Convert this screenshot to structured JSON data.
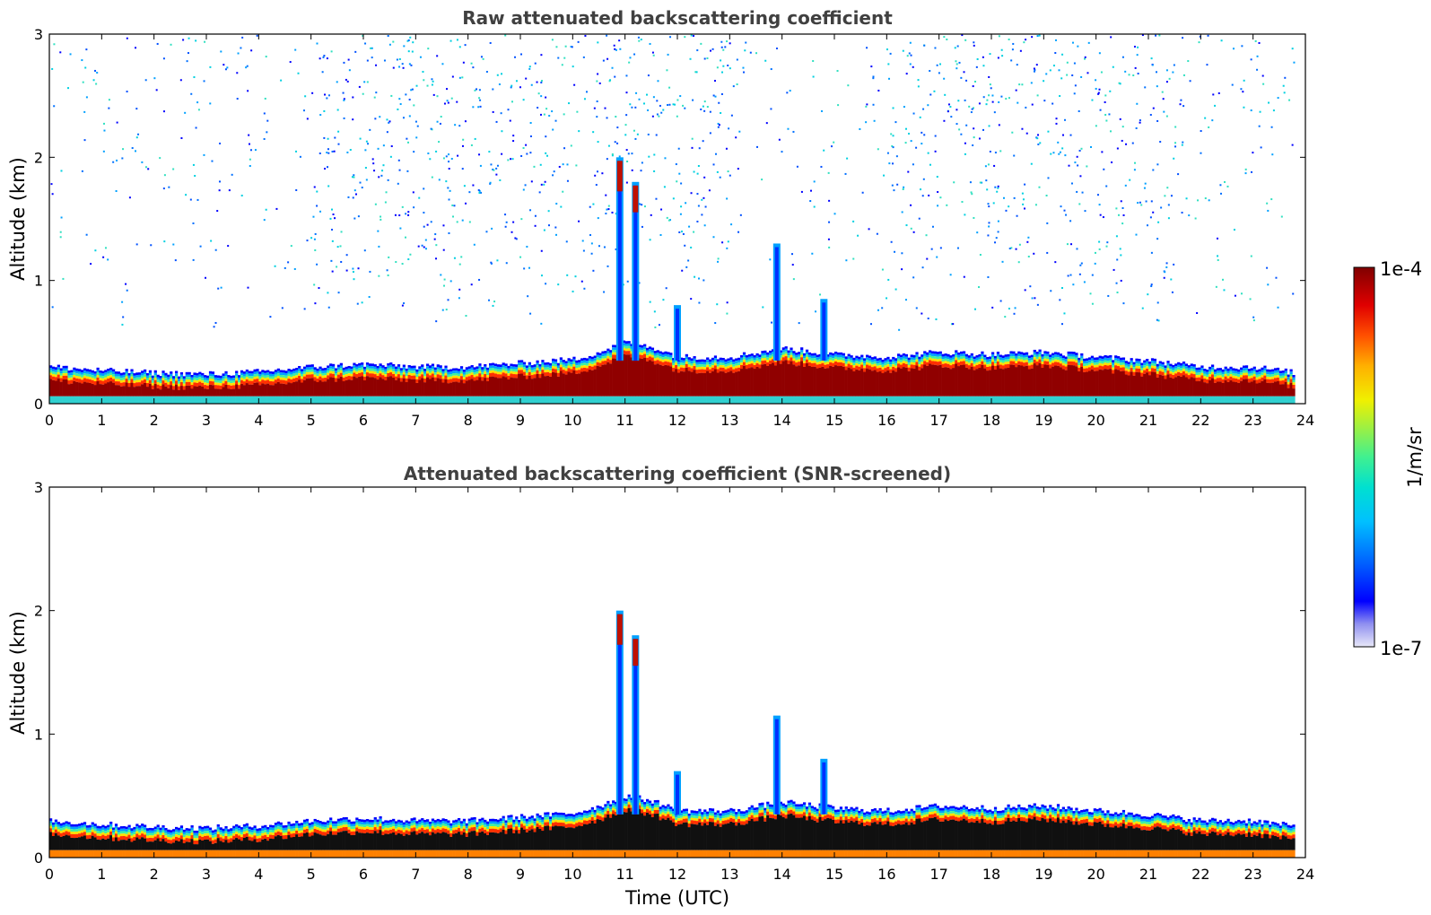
{
  "chart_data": [
    {
      "type": "heatmap",
      "title": "Raw attenuated backscattering coefficient",
      "xlabel": "",
      "ylabel": "Altitude (km)",
      "xlim": [
        0,
        24
      ],
      "ylim": [
        0,
        3
      ],
      "xticks": [
        "0",
        "1",
        "2",
        "3",
        "4",
        "5",
        "6",
        "7",
        "8",
        "9",
        "10",
        "11",
        "12",
        "13",
        "14",
        "15",
        "16",
        "17",
        "18",
        "19",
        "20",
        "21",
        "22",
        "23",
        "24"
      ],
      "yticks": [
        "0",
        "1",
        "2",
        "3"
      ],
      "boundary_layer_top_km": [
        [
          0,
          0.3
        ],
        [
          1,
          0.27
        ],
        [
          2,
          0.25
        ],
        [
          3,
          0.24
        ],
        [
          4,
          0.26
        ],
        [
          5,
          0.3
        ],
        [
          6,
          0.32
        ],
        [
          7,
          0.3
        ],
        [
          8,
          0.3
        ],
        [
          9,
          0.33
        ],
        [
          10,
          0.36
        ],
        [
          10.5,
          0.42
        ],
        [
          11,
          0.5
        ],
        [
          11.5,
          0.46
        ],
        [
          12,
          0.38
        ],
        [
          13,
          0.38
        ],
        [
          14,
          0.45
        ],
        [
          15,
          0.4
        ],
        [
          16,
          0.38
        ],
        [
          17,
          0.42
        ],
        [
          18,
          0.4
        ],
        [
          19,
          0.42
        ],
        [
          20,
          0.38
        ],
        [
          21,
          0.35
        ],
        [
          22,
          0.3
        ],
        [
          23,
          0.3
        ],
        [
          23.8,
          0.25
        ]
      ],
      "plumes": [
        {
          "time": 10.9,
          "top_km": 2.0
        },
        {
          "time": 11.2,
          "top_km": 1.8
        },
        {
          "time": 12.0,
          "top_km": 0.8
        },
        {
          "time": 13.9,
          "top_km": 1.3
        },
        {
          "time": 14.8,
          "top_km": 0.85
        }
      ],
      "background_noise": "scattered above 0.5 km, densest 5-13 UTC and 16-21 UTC"
    },
    {
      "type": "heatmap",
      "title": "Attenuated backscattering coefficient (SNR-screened)",
      "xlabel": "Time (UTC)",
      "ylabel": "Altitude (km)",
      "xlim": [
        0,
        24
      ],
      "ylim": [
        0,
        3
      ],
      "xticks": [
        "0",
        "1",
        "2",
        "3",
        "4",
        "5",
        "6",
        "7",
        "8",
        "9",
        "10",
        "11",
        "12",
        "13",
        "14",
        "15",
        "16",
        "17",
        "18",
        "19",
        "20",
        "21",
        "22",
        "23",
        "24"
      ],
      "yticks": [
        "0",
        "1",
        "2",
        "3"
      ],
      "boundary_layer_top_km": [
        [
          0,
          0.3
        ],
        [
          1,
          0.27
        ],
        [
          2,
          0.25
        ],
        [
          3,
          0.24
        ],
        [
          4,
          0.26
        ],
        [
          5,
          0.3
        ],
        [
          6,
          0.32
        ],
        [
          7,
          0.3
        ],
        [
          8,
          0.3
        ],
        [
          9,
          0.33
        ],
        [
          10,
          0.36
        ],
        [
          10.5,
          0.42
        ],
        [
          11,
          0.5
        ],
        [
          11.5,
          0.46
        ],
        [
          12,
          0.38
        ],
        [
          13,
          0.38
        ],
        [
          14,
          0.45
        ],
        [
          15,
          0.4
        ],
        [
          16,
          0.38
        ],
        [
          17,
          0.42
        ],
        [
          18,
          0.4
        ],
        [
          19,
          0.42
        ],
        [
          20,
          0.38
        ],
        [
          21,
          0.35
        ],
        [
          22,
          0.3
        ],
        [
          23,
          0.3
        ],
        [
          23.8,
          0.25
        ]
      ],
      "plumes": [
        {
          "time": 10.9,
          "top_km": 2.0
        },
        {
          "time": 11.2,
          "top_km": 1.8
        },
        {
          "time": 12.0,
          "top_km": 0.7
        },
        {
          "time": 13.9,
          "top_km": 1.15
        },
        {
          "time": 14.8,
          "top_km": 0.8
        }
      ],
      "background_noise": "removed"
    }
  ],
  "colorbar": {
    "label": "1/m/sr",
    "max_label": "1e-4",
    "min_label": "1e-7",
    "scale": "log",
    "colormap": [
      "#e8e8f8",
      "#b8b8f0",
      "#7070f0",
      "#0000ff",
      "#0050ff",
      "#00a0ff",
      "#00e0e0",
      "#40f0a0",
      "#a0f040",
      "#f0f000",
      "#ffb000",
      "#ff6000",
      "#ff0000",
      "#c00000",
      "#800000"
    ]
  }
}
